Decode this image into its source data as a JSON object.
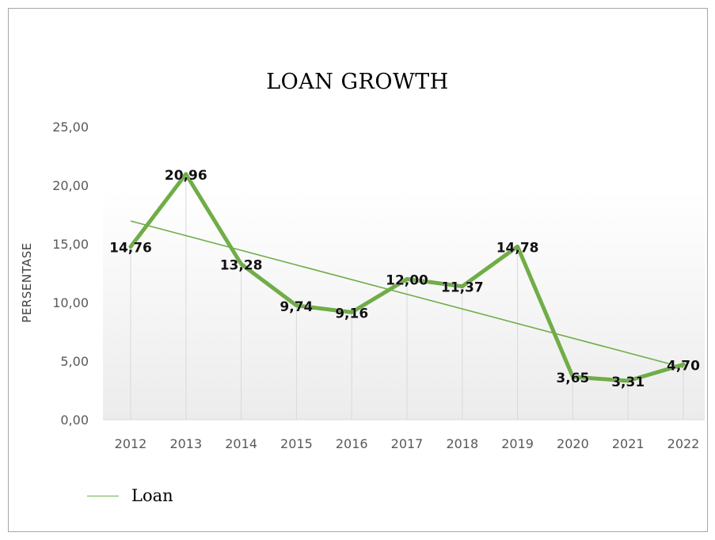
{
  "chart_data": {
    "type": "line",
    "title": "LOAN GROWTH",
    "xlabel": "",
    "ylabel": "PERSENTASE",
    "categories": [
      "2012",
      "2013",
      "2014",
      "2015",
      "2016",
      "2017",
      "2018",
      "2019",
      "2020",
      "2021",
      "2022"
    ],
    "series": [
      {
        "name": "Loan",
        "values": [
          14.76,
          20.96,
          13.28,
          9.74,
          9.16,
          12.0,
          11.37,
          14.78,
          3.65,
          3.31,
          4.7
        ],
        "labels": [
          "14,76",
          "20,96",
          "13,28",
          "9,74",
          "9,16",
          "12,00",
          "11,37",
          "14,78",
          "3,65",
          "3,31",
          "4,70"
        ],
        "color": "#70ad47"
      }
    ],
    "trendline": {
      "type": "linear",
      "color": "#70ad47",
      "legend_label": "Loan"
    },
    "ylim": [
      0,
      25
    ],
    "yticks": [
      0,
      5,
      10,
      15,
      20,
      25
    ],
    "ytick_labels": [
      "0,00",
      "5,00",
      "10,00",
      "15,00",
      "20,00",
      "25,00"
    ],
    "grid": "vertical",
    "legend": {
      "position": "bottom-left",
      "entries": [
        "Loan"
      ]
    }
  }
}
